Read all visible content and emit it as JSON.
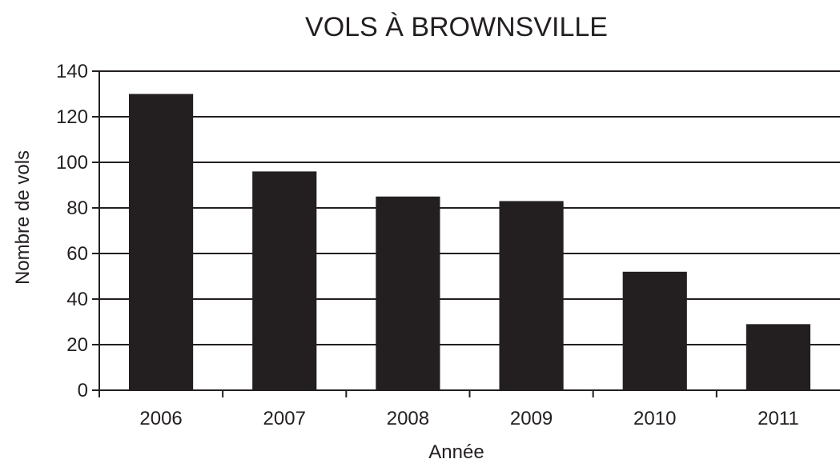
{
  "chart_data": {
    "type": "bar",
    "title": "VOLS À BROWNSVILLE",
    "xlabel": "Année",
    "ylabel": "Nombre de vols",
    "categories": [
      "2006",
      "2007",
      "2008",
      "2009",
      "2010",
      "2011"
    ],
    "values": [
      130,
      96,
      85,
      83,
      52,
      29
    ],
    "ylim": [
      0,
      140
    ],
    "yticks": [
      "0",
      "20",
      "40",
      "60",
      "80",
      "100",
      "120",
      "140"
    ],
    "grid": true,
    "legend": "none",
    "colors": {
      "bar": "#231f20",
      "grid": "#231f20",
      "axis": "#231f20",
      "background": "#ffffff"
    }
  }
}
